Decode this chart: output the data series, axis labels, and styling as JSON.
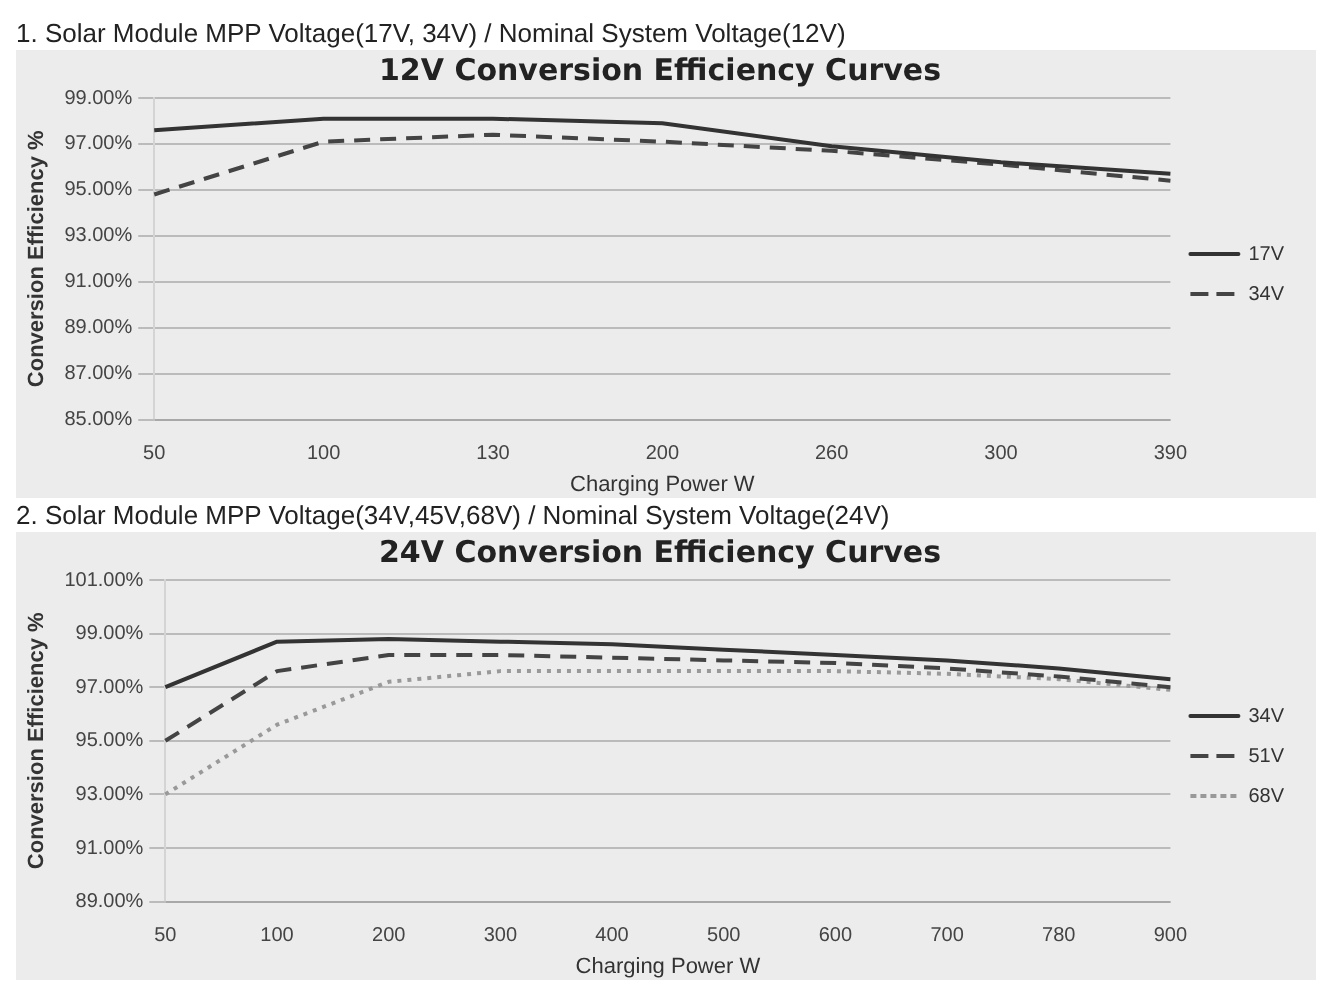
{
  "chart_data": [
    {
      "type": "line",
      "subtitle": "1.   Solar Module MPP Voltage(17V, 34V) / Nominal System Voltage(12V)",
      "title": "12V Conversion Efficiency Curves",
      "xlabel": "Charging Power W",
      "ylabel": "Conversion Efficiency %",
      "categories": [
        "50",
        "100",
        "130",
        "200",
        "260",
        "300",
        "390"
      ],
      "ylim": [
        85,
        99
      ],
      "yticks": [
        {
          "value": 85,
          "label": "85.00%"
        },
        {
          "value": 87,
          "label": "87.00%"
        },
        {
          "value": 89,
          "label": "89.00%"
        },
        {
          "value": 91,
          "label": "91.00%"
        },
        {
          "value": 93,
          "label": "93.00%"
        },
        {
          "value": 95,
          "label": "95.00%"
        },
        {
          "value": 97,
          "label": "97.00%"
        },
        {
          "value": 99,
          "label": "99.00%"
        }
      ],
      "grid": "y",
      "legend": "right",
      "marker": "none",
      "series": [
        {
          "name": "17V",
          "color": "#333333",
          "line_style": "solid",
          "values": [
            97.6,
            98.1,
            98.1,
            97.9,
            96.9,
            96.2,
            95.7
          ]
        },
        {
          "name": "34V",
          "color": "#444444",
          "line_style": "dashed",
          "values": [
            94.8,
            97.1,
            97.4,
            97.1,
            96.7,
            96.1,
            95.4
          ]
        }
      ]
    },
    {
      "type": "line",
      "subtitle": "2. Solar Module MPP Voltage(34V,45V,68V) / Nominal System Voltage(24V)",
      "title": "24V Conversion Efficiency Curves",
      "xlabel": "Charging Power W",
      "ylabel": "Conversion Efficiency %",
      "categories": [
        "50",
        "100",
        "200",
        "300",
        "400",
        "500",
        "600",
        "700",
        "780",
        "900"
      ],
      "ylim": [
        89,
        101
      ],
      "yticks": [
        {
          "value": 89,
          "label": "89.00%"
        },
        {
          "value": 91,
          "label": "91.00%"
        },
        {
          "value": 93,
          "label": "93.00%"
        },
        {
          "value": 95,
          "label": "95.00%"
        },
        {
          "value": 97,
          "label": "97.00%"
        },
        {
          "value": 99,
          "label": "99.00%"
        },
        {
          "value": 101,
          "label": "101.00%"
        }
      ],
      "grid": "y",
      "legend": "right",
      "marker": "none",
      "series": [
        {
          "name": "34V",
          "color": "#333333",
          "line_style": "solid",
          "values": [
            97.0,
            98.7,
            98.8,
            98.7,
            98.6,
            98.4,
            98.2,
            98.0,
            97.7,
            97.3
          ]
        },
        {
          "name": "51V",
          "color": "#444444",
          "line_style": "dashed",
          "values": [
            95.0,
            97.6,
            98.2,
            98.2,
            98.1,
            98.0,
            97.9,
            97.7,
            97.4,
            97.0
          ]
        },
        {
          "name": "68V",
          "color": "#999999",
          "line_style": "dotted",
          "values": [
            93.0,
            95.6,
            97.2,
            97.6,
            97.6,
            97.6,
            97.6,
            97.5,
            97.3,
            96.9
          ]
        }
      ]
    }
  ]
}
